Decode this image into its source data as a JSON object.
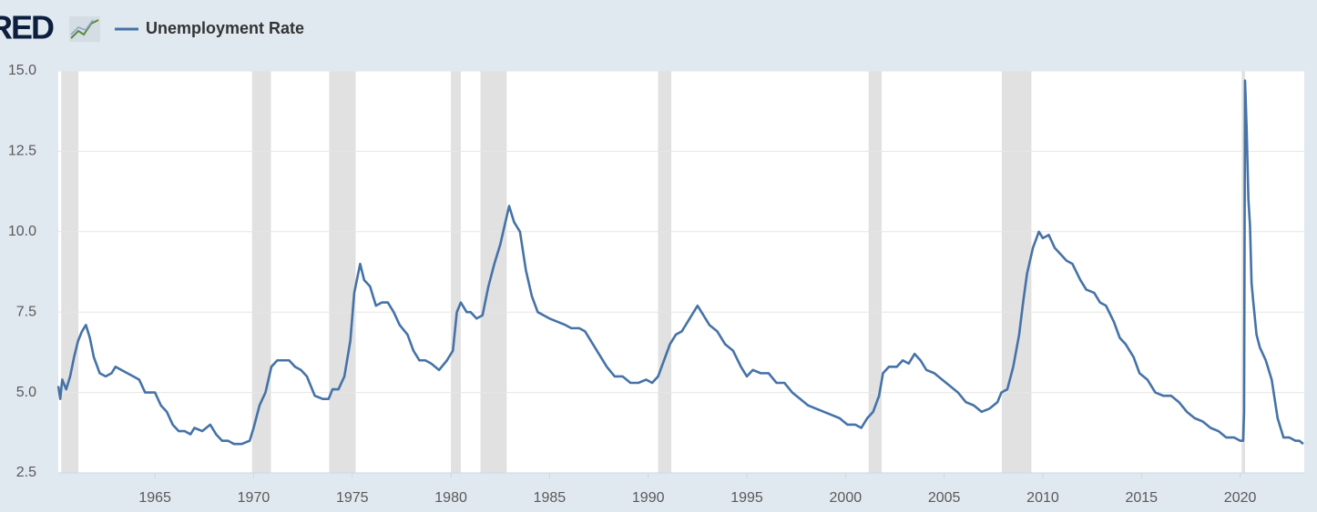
{
  "chart_data": {
    "type": "line",
    "logo": "FRED",
    "series": [
      {
        "name": "Unemployment Rate",
        "color": "#4572a7",
        "x": [
          1960.1,
          1960.2,
          1960.3,
          1960.5,
          1960.7,
          1960.9,
          1961.1,
          1961.3,
          1961.5,
          1961.7,
          1961.9,
          1962.2,
          1962.5,
          1962.8,
          1963.0,
          1963.3,
          1963.6,
          1963.9,
          1964.2,
          1964.5,
          1964.8,
          1965.0,
          1965.3,
          1965.6,
          1965.9,
          1966.2,
          1966.5,
          1966.8,
          1967.0,
          1967.4,
          1967.8,
          1968.1,
          1968.4,
          1968.7,
          1969.0,
          1969.4,
          1969.8,
          1970.0,
          1970.3,
          1970.6,
          1970.9,
          1971.2,
          1971.5,
          1971.8,
          1972.1,
          1972.4,
          1972.7,
          1972.9,
          1973.1,
          1973.5,
          1973.8,
          1974.0,
          1974.3,
          1974.6,
          1974.9,
          1975.1,
          1975.4,
          1975.6,
          1975.9,
          1976.2,
          1976.5,
          1976.8,
          1977.1,
          1977.4,
          1977.8,
          1978.1,
          1978.4,
          1978.7,
          1979.0,
          1979.4,
          1979.8,
          1980.1,
          1980.3,
          1980.5,
          1980.8,
          1981.0,
          1981.3,
          1981.6,
          1981.9,
          1982.2,
          1982.5,
          1982.8,
          1982.95,
          1983.2,
          1983.5,
          1983.8,
          1984.1,
          1984.4,
          1984.7,
          1985.0,
          1985.4,
          1985.8,
          1986.1,
          1986.5,
          1986.8,
          1987.1,
          1987.5,
          1987.9,
          1988.3,
          1988.7,
          1989.1,
          1989.5,
          1989.9,
          1990.2,
          1990.5,
          1990.8,
          1991.1,
          1991.4,
          1991.7,
          1992.1,
          1992.5,
          1992.8,
          1993.1,
          1993.5,
          1993.9,
          1994.3,
          1994.7,
          1995.0,
          1995.3,
          1995.7,
          1996.1,
          1996.5,
          1996.9,
          1997.3,
          1997.7,
          1998.1,
          1998.5,
          1998.9,
          1999.3,
          1999.7,
          2000.1,
          2000.5,
          2000.8,
          2001.1,
          2001.4,
          2001.7,
          2001.9,
          2002.2,
          2002.6,
          2002.9,
          2003.2,
          2003.5,
          2003.8,
          2004.1,
          2004.5,
          2004.9,
          2005.3,
          2005.7,
          2006.1,
          2006.5,
          2006.9,
          2007.3,
          2007.7,
          2007.9,
          2008.2,
          2008.5,
          2008.8,
          2009.0,
          2009.2,
          2009.5,
          2009.8,
          2010.0,
          2010.3,
          2010.6,
          2010.9,
          2011.2,
          2011.5,
          2011.9,
          2012.2,
          2012.6,
          2012.9,
          2013.2,
          2013.6,
          2013.9,
          2014.2,
          2014.6,
          2014.9,
          2015.3,
          2015.7,
          2016.1,
          2016.5,
          2016.9,
          2017.3,
          2017.7,
          2018.1,
          2018.5,
          2018.9,
          2019.3,
          2019.7,
          2020.0,
          2020.15,
          2020.2,
          2020.25,
          2020.33,
          2020.42,
          2020.5,
          2020.58,
          2020.67,
          2020.83,
          2021.0,
          2021.3,
          2021.6,
          2021.9,
          2022.2,
          2022.5,
          2022.8,
          2023.0,
          2023.2
        ],
        "values": [
          5.2,
          4.8,
          5.4,
          5.1,
          5.5,
          6.1,
          6.6,
          6.9,
          7.1,
          6.7,
          6.1,
          5.6,
          5.5,
          5.6,
          5.8,
          5.7,
          5.6,
          5.5,
          5.4,
          5.0,
          5.0,
          5.0,
          4.6,
          4.4,
          4.0,
          3.8,
          3.8,
          3.7,
          3.9,
          3.8,
          4.0,
          3.7,
          3.5,
          3.5,
          3.4,
          3.4,
          3.5,
          3.9,
          4.6,
          5.0,
          5.8,
          6.0,
          6.0,
          6.0,
          5.8,
          5.7,
          5.5,
          5.2,
          4.9,
          4.8,
          4.8,
          5.1,
          5.1,
          5.5,
          6.6,
          8.1,
          9.0,
          8.5,
          8.3,
          7.7,
          7.8,
          7.8,
          7.5,
          7.1,
          6.8,
          6.3,
          6.0,
          6.0,
          5.9,
          5.7,
          6.0,
          6.3,
          7.5,
          7.8,
          7.5,
          7.5,
          7.3,
          7.4,
          8.3,
          9.0,
          9.6,
          10.4,
          10.8,
          10.3,
          10.0,
          8.8,
          8.0,
          7.5,
          7.4,
          7.3,
          7.2,
          7.1,
          7.0,
          7.0,
          6.9,
          6.6,
          6.2,
          5.8,
          5.5,
          5.5,
          5.3,
          5.3,
          5.4,
          5.3,
          5.5,
          6.0,
          6.5,
          6.8,
          6.9,
          7.3,
          7.7,
          7.4,
          7.1,
          6.9,
          6.5,
          6.3,
          5.8,
          5.5,
          5.7,
          5.6,
          5.6,
          5.3,
          5.3,
          5.0,
          4.8,
          4.6,
          4.5,
          4.4,
          4.3,
          4.2,
          4.0,
          4.0,
          3.9,
          4.2,
          4.4,
          4.9,
          5.6,
          5.8,
          5.8,
          6.0,
          5.9,
          6.2,
          6.0,
          5.7,
          5.6,
          5.4,
          5.2,
          5.0,
          4.7,
          4.6,
          4.4,
          4.5,
          4.7,
          5.0,
          5.1,
          5.8,
          6.8,
          7.8,
          8.7,
          9.5,
          10.0,
          9.8,
          9.9,
          9.5,
          9.3,
          9.1,
          9.0,
          8.5,
          8.2,
          8.1,
          7.8,
          7.7,
          7.2,
          6.7,
          6.5,
          6.1,
          5.6,
          5.4,
          5.0,
          4.9,
          4.9,
          4.7,
          4.4,
          4.2,
          4.1,
          3.9,
          3.8,
          3.6,
          3.6,
          3.5,
          3.5,
          4.4,
          14.7,
          13.2,
          11.0,
          10.2,
          8.4,
          7.8,
          6.8,
          6.4,
          6.0,
          5.4,
          4.2,
          3.6,
          3.6,
          3.5,
          3.5,
          3.4
        ]
      }
    ],
    "recessions": [
      [
        1960.25,
        1961.12
      ],
      [
        1969.92,
        1970.88
      ],
      [
        1973.83,
        1975.17
      ],
      [
        1980.0,
        1980.5
      ],
      [
        1981.5,
        1982.83
      ],
      [
        1990.5,
        1991.17
      ],
      [
        2001.17,
        2001.83
      ],
      [
        2007.92,
        2009.42
      ],
      [
        2020.08,
        2020.25
      ]
    ],
    "recession_color": "#e1e1e1",
    "xlim": [
      1960.1,
      2023.25
    ],
    "xticks": [
      1965,
      1970,
      1975,
      1980,
      1985,
      1990,
      1995,
      2000,
      2005,
      2010,
      2015,
      2020
    ],
    "ylim": [
      2.5,
      15
    ],
    "yticks": [
      2.5,
      {
        "value": 5,
        "label": "5.0"
      },
      7.5,
      {
        "value": 10,
        "label": "10.0"
      },
      12.5,
      {
        "value": 15,
        "label": "15.0"
      }
    ],
    "grid": true
  }
}
